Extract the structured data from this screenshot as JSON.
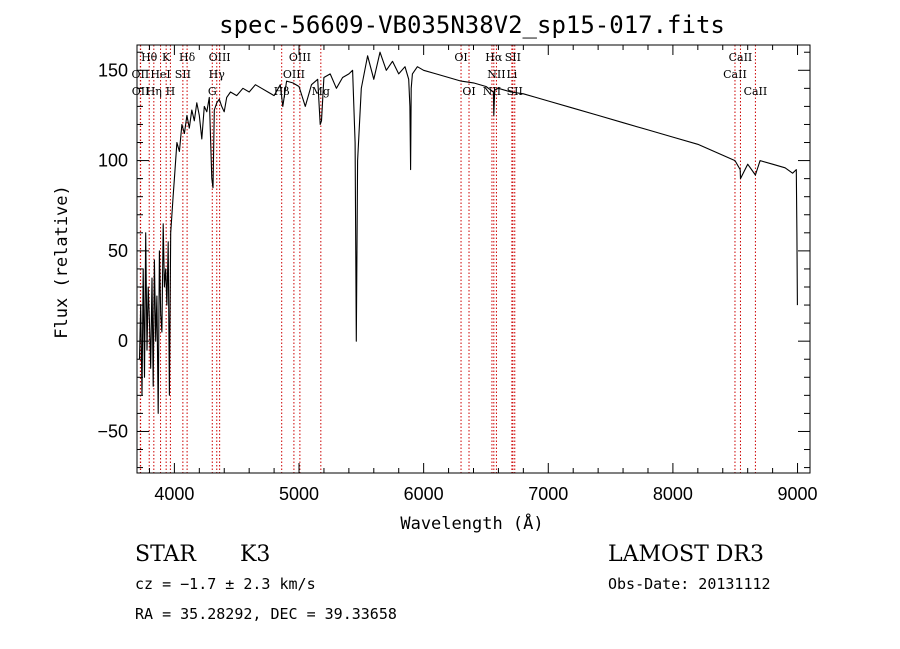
{
  "chart_data": {
    "type": "line",
    "title": "spec-56609-VB035N38V2_sp15-017.fits",
    "xlabel": "Wavelength (Å)",
    "ylabel": "Flux (relative)",
    "xlim": [
      3700,
      9100
    ],
    "ylim": [
      -73,
      164
    ],
    "xticks": [
      4000,
      5000,
      6000,
      7000,
      8000,
      9000
    ],
    "xtick_labels": [
      "4000",
      "5000",
      "6000",
      "7000",
      "8000",
      "9000"
    ],
    "yticks": [
      -50,
      0,
      50,
      100,
      150
    ],
    "ytick_labels": [
      "−50",
      "0",
      "50",
      "100",
      "150"
    ],
    "series": [
      {
        "name": "flux",
        "x": [
          3720,
          3730,
          3740,
          3750,
          3760,
          3770,
          3780,
          3790,
          3800,
          3810,
          3820,
          3830,
          3840,
          3850,
          3860,
          3870,
          3880,
          3890,
          3900,
          3910,
          3920,
          3930,
          3940,
          3950,
          3960,
          3970,
          3980,
          3990,
          4000,
          4020,
          4040,
          4060,
          4080,
          4100,
          4120,
          4140,
          4160,
          4180,
          4200,
          4220,
          4240,
          4260,
          4280,
          4300,
          4310,
          4320,
          4340,
          4360,
          4380,
          4400,
          4420,
          4450,
          4500,
          4550,
          4600,
          4650,
          4700,
          4750,
          4800,
          4850,
          4870,
          4900,
          4950,
          5000,
          5050,
          5100,
          5150,
          5170,
          5180,
          5200,
          5250,
          5300,
          5350,
          5400,
          5430,
          5450,
          5460,
          5470,
          5500,
          5550,
          5600,
          5650,
          5700,
          5750,
          5800,
          5850,
          5880,
          5890,
          5895,
          5900,
          5910,
          5950,
          6000,
          6100,
          6200,
          6300,
          6400,
          6500,
          6560,
          6563,
          6570,
          6600,
          6700,
          6800,
          6900,
          7000,
          7200,
          7400,
          7600,
          7800,
          8000,
          8200,
          8400,
          8498,
          8540,
          8542,
          8600,
          8662,
          8700,
          8800,
          8900,
          8960,
          8990,
          8995,
          8999
        ],
        "values": [
          -10,
          20,
          -30,
          40,
          -20,
          60,
          -5,
          30,
          10,
          -15,
          35,
          -25,
          45,
          0,
          25,
          -40,
          50,
          15,
          5,
          65,
          30,
          40,
          20,
          55,
          -30,
          60,
          70,
          80,
          90,
          110,
          105,
          120,
          115,
          125,
          118,
          128,
          122,
          132,
          125,
          112,
          130,
          127,
          135,
          90,
          85,
          128,
          132,
          134,
          130,
          127,
          135,
          138,
          136,
          140,
          138,
          142,
          140,
          138,
          136,
          142,
          130,
          144,
          143,
          141,
          130,
          142,
          145,
          120,
          122,
          146,
          148,
          140,
          146,
          148,
          150,
          110,
          0,
          100,
          140,
          158,
          145,
          160,
          150,
          155,
          148,
          152,
          145,
          130,
          95,
          140,
          148,
          152,
          150,
          148,
          146,
          144,
          143,
          141,
          138,
          125,
          139,
          140,
          138,
          137,
          135,
          133,
          129,
          125,
          121,
          117,
          113,
          109,
          103,
          100,
          95,
          90,
          98,
          92,
          100,
          98,
          96,
          93,
          95,
          60,
          20
        ],
        "color": "#000000"
      }
    ],
    "lines": [
      {
        "name": "Hθ",
        "wavelength": 3798,
        "row": 0
      },
      {
        "name": "K",
        "wavelength": 3934,
        "row": 0
      },
      {
        "name": "Hδ",
        "wavelength": 4102,
        "row": 0
      },
      {
        "name": "OIII",
        "wavelength": 4363,
        "row": 0
      },
      {
        "name": "OIII",
        "wavelength": 5007,
        "row": 0
      },
      {
        "name": "OI",
        "wavelength": 6300,
        "row": 0
      },
      {
        "name": "Hα",
        "wavelength": 6563,
        "row": 0
      },
      {
        "name": "SII",
        "wavelength": 6716,
        "row": 0
      },
      {
        "name": "CaII",
        "wavelength": 8542,
        "row": 0
      },
      {
        "name": "OII",
        "wavelength": 3727,
        "row": 1
      },
      {
        "name": "HeI",
        "wavelength": 3889,
        "row": 1
      },
      {
        "name": "SII",
        "wavelength": 4068,
        "row": 1
      },
      {
        "name": "Hγ",
        "wavelength": 4340,
        "row": 1
      },
      {
        "name": "OIII",
        "wavelength": 4959,
        "row": 1
      },
      {
        "name": "NII",
        "wavelength": 6584,
        "row": 1
      },
      {
        "name": "Li",
        "wavelength": 6708,
        "row": 1
      },
      {
        "name": "CaII",
        "wavelength": 8498,
        "row": 1
      },
      {
        "name": "OII",
        "wavelength": 3729,
        "row": 2
      },
      {
        "name": "Hη",
        "wavelength": 3835,
        "row": 2
      },
      {
        "name": "H",
        "wavelength": 3968,
        "row": 2
      },
      {
        "name": "G",
        "wavelength": 4304,
        "row": 2
      },
      {
        "name": "Hβ",
        "wavelength": 4861,
        "row": 2
      },
      {
        "name": "Mg",
        "wavelength": 5175,
        "row": 2
      },
      {
        "name": "OI",
        "wavelength": 6364,
        "row": 2
      },
      {
        "name": "NII",
        "wavelength": 6548,
        "row": 2
      },
      {
        "name": "SII",
        "wavelength": 6731,
        "row": 2
      },
      {
        "name": "CaII",
        "wavelength": 8662,
        "row": 2
      }
    ],
    "line_marker_color": "#cc0000"
  },
  "info": {
    "class_label": "STAR",
    "subclass": "K3",
    "survey": "LAMOST DR3",
    "cz": "cz = −1.7 ± 2.3 km/s",
    "obs_date": "Obs-Date: 20131112",
    "coords": "RA =  35.28292, DEC =  39.33658"
  }
}
